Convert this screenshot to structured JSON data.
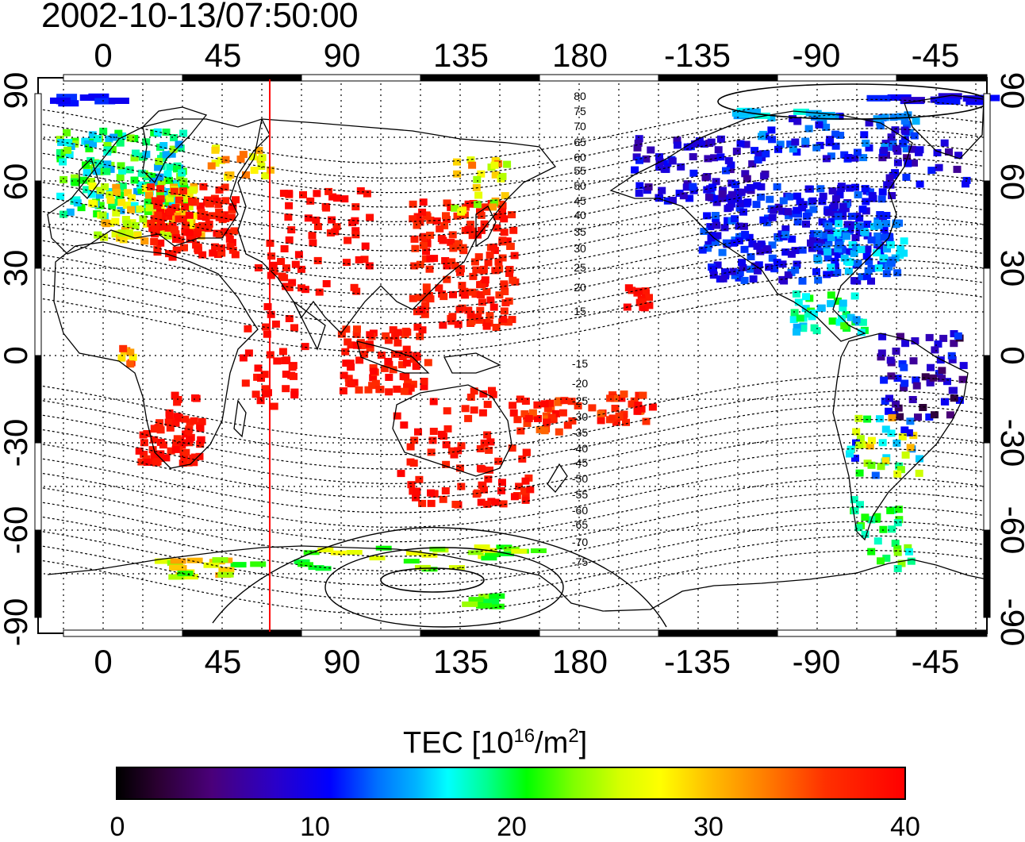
{
  "timestamp": "2002-10-13/07:50:00",
  "map": {
    "top_lon_labels": [
      "0",
      "45",
      "90",
      "135",
      "180",
      "-135",
      "-90",
      "-45"
    ],
    "bottom_lon_labels": [
      "0",
      "45",
      "90",
      "135",
      "180",
      "-135",
      "-90",
      "-45"
    ],
    "left_lat_labels": [
      "90",
      "60",
      "30",
      "0",
      "-30",
      "-60",
      "-90"
    ],
    "right_lat_labels": [
      "90",
      "60",
      "30",
      "0",
      "-30",
      "-60",
      "-90"
    ],
    "contour_labels": [
      "80",
      "75",
      "70",
      "65",
      "60",
      "55",
      "50",
      "45",
      "40",
      "35",
      "30",
      "25",
      "20",
      "15",
      "-15",
      "-20",
      "-25",
      "-30",
      "-35",
      "-40",
      "-45",
      "-50",
      "-55",
      "-60",
      "-65",
      "-70",
      "-75"
    ],
    "marker_lon": 63,
    "colors": {
      "marker": "#ff0000",
      "coast": "#000000",
      "grid": "#000000"
    }
  },
  "colorbar": {
    "title_main": "TEC  [10",
    "title_exp1": "16",
    "title_mid": "/m",
    "title_exp2": "2",
    "title_end": "]",
    "ticks": [
      "0",
      "10",
      "20",
      "30",
      "40"
    ],
    "min": 0,
    "max": 40
  }
}
